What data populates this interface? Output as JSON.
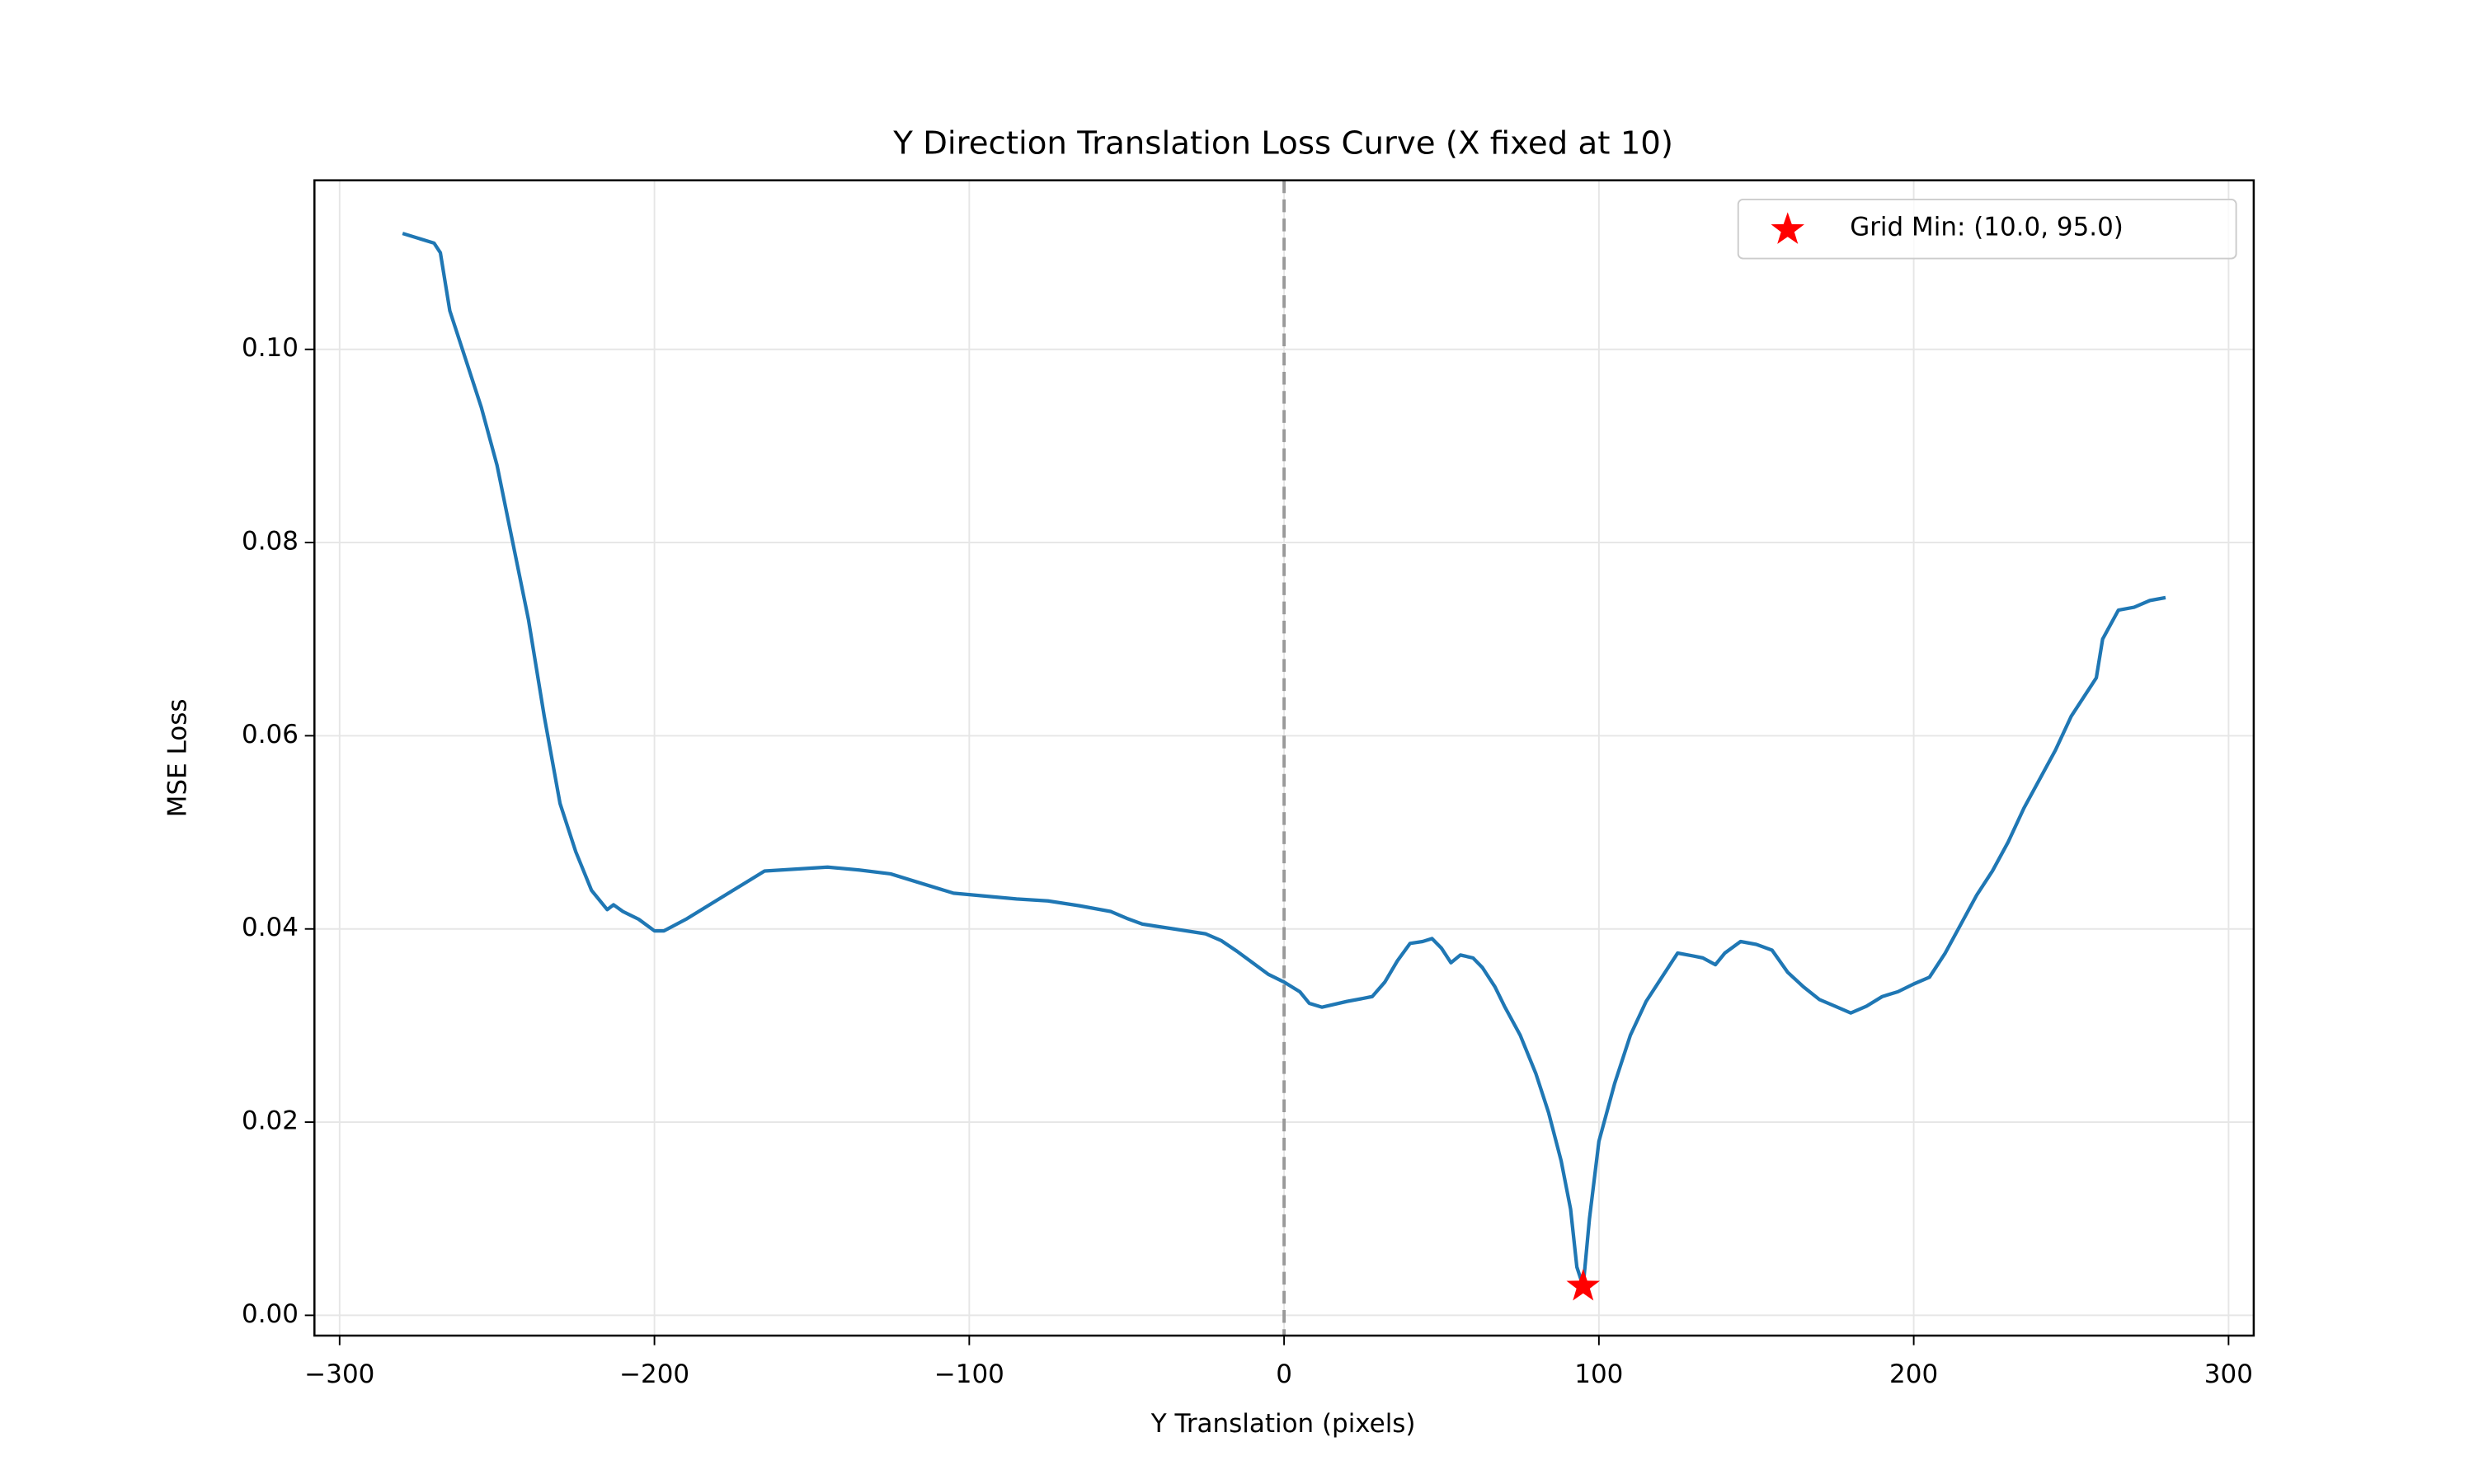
{
  "chart_data": {
    "type": "line",
    "title": "Y Direction Translation Loss Curve (X fixed at 10)",
    "xlabel": "Y Translation (pixels)",
    "ylabel": "MSE Loss",
    "x": [
      -280,
      -275,
      -270,
      -268,
      -265,
      -260,
      -255,
      -250,
      -245,
      -240,
      -235,
      -230,
      -225,
      -220,
      -215,
      -213,
      -210,
      -205,
      -200,
      -197,
      -190,
      -180,
      -170,
      -165,
      -155,
      -145,
      -135,
      -125,
      -115,
      -105,
      -95,
      -85,
      -75,
      -65,
      -55,
      -50,
      -45,
      -35,
      -25,
      -20,
      -15,
      -10,
      -5,
      0,
      5,
      8,
      12,
      20,
      25,
      28,
      32,
      36,
      40,
      44,
      47,
      50,
      53,
      56,
      60,
      63,
      67,
      70,
      75,
      80,
      84,
      88,
      91,
      93,
      95,
      97,
      100,
      105,
      110,
      115,
      120,
      125,
      130,
      133,
      137,
      140,
      145,
      150,
      155,
      160,
      165,
      170,
      175,
      180,
      185,
      190,
      195,
      200,
      205,
      210,
      215,
      220,
      225,
      230,
      235,
      240,
      245,
      250,
      255,
      258,
      260,
      265,
      270,
      275,
      280
    ],
    "values": [
      0.112,
      0.1115,
      0.111,
      0.11,
      0.104,
      0.099,
      0.094,
      0.088,
      0.08,
      0.072,
      0.062,
      0.053,
      0.048,
      0.044,
      0.042,
      0.0425,
      0.0418,
      0.041,
      0.0398,
      0.0398,
      0.041,
      0.043,
      0.045,
      0.046,
      0.0462,
      0.0464,
      0.0461,
      0.0457,
      0.0447,
      0.0437,
      0.0434,
      0.0431,
      0.0429,
      0.0424,
      0.0418,
      0.0411,
      0.0405,
      0.04,
      0.0395,
      0.0388,
      0.0377,
      0.0365,
      0.0353,
      0.0345,
      0.0335,
      0.0323,
      0.0319,
      0.0325,
      0.0328,
      0.033,
      0.0345,
      0.0367,
      0.0385,
      0.0387,
      0.039,
      0.038,
      0.0365,
      0.0373,
      0.037,
      0.036,
      0.034,
      0.032,
      0.029,
      0.025,
      0.021,
      0.016,
      0.011,
      0.005,
      0.003,
      0.01,
      0.018,
      0.024,
      0.029,
      0.0325,
      0.035,
      0.0375,
      0.0372,
      0.037,
      0.0363,
      0.0375,
      0.0387,
      0.0384,
      0.0378,
      0.0355,
      0.034,
      0.0327,
      0.032,
      0.0313,
      0.032,
      0.033,
      0.0335,
      0.0343,
      0.035,
      0.0375,
      0.0405,
      0.0435,
      0.046,
      0.049,
      0.0525,
      0.0555,
      0.0585,
      0.062,
      0.0645,
      0.066,
      0.07,
      0.073,
      0.0733,
      0.074,
      0.0743
    ],
    "color": "#1f77b4",
    "highlight": {
      "label": "Grid Min: (10.0, 95.0)",
      "x": 95,
      "y": 0.003,
      "color": "#ff0000"
    },
    "reference_line": {
      "x": 0,
      "color": "#999999"
    },
    "xlim": [
      -308,
      308
    ],
    "ylim": [
      -0.0021,
      0.1175
    ],
    "xticks": [
      {
        "value": -300,
        "label": "−300"
      },
      {
        "value": -200,
        "label": "−200"
      },
      {
        "value": -100,
        "label": "−100"
      },
      0,
      100,
      200,
      300
    ],
    "yticks": [
      {
        "value": 0,
        "label": "0.00"
      },
      {
        "value": 0.02,
        "label": "0.02"
      },
      {
        "value": 0.04,
        "label": "0.04"
      },
      {
        "value": 0.06,
        "label": "0.06"
      },
      {
        "value": 0.08,
        "label": "0.08"
      },
      {
        "value": 0.1,
        "label": "0.10"
      }
    ],
    "grid": true,
    "legend": "upper right"
  }
}
